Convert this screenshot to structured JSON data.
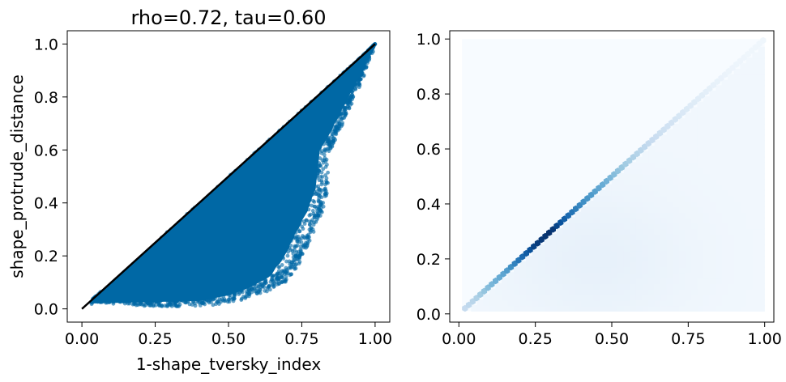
{
  "chart_data": [
    {
      "type": "scatter",
      "title": "rho=0.72, tau=0.60",
      "xlabel": "1-shape_tversky_index",
      "ylabel": "shape_protrude_distance",
      "xlim": [
        -0.05,
        1.05
      ],
      "ylim": [
        -0.05,
        1.05
      ],
      "xticks": [
        "0.00",
        "0.25",
        "0.50",
        "0.75",
        "1.00"
      ],
      "xtick_values": [
        0,
        0.25,
        0.5,
        0.75,
        1.0
      ],
      "yticks": [
        "0.0",
        "0.2",
        "0.4",
        "0.6",
        "0.8",
        "1.0"
      ],
      "ytick_values": [
        0,
        0.2,
        0.4,
        0.6,
        0.8,
        1.0
      ],
      "grid": false,
      "point_color": "#0068a5",
      "line_color": "#000000",
      "reference_line": [
        [
          0,
          0
        ],
        [
          1,
          1
        ]
      ],
      "upper_boundary": [
        [
          0.0,
          0.0
        ],
        [
          1.0,
          1.0
        ]
      ],
      "lower_boundary": [
        [
          0.02,
          0.02
        ],
        [
          0.05,
          0.04
        ],
        [
          0.15,
          0.03
        ],
        [
          0.3,
          0.02
        ],
        [
          0.45,
          0.03
        ],
        [
          0.55,
          0.05
        ],
        [
          0.63,
          0.08
        ],
        [
          0.7,
          0.12
        ],
        [
          0.75,
          0.2
        ],
        [
          0.78,
          0.28
        ],
        [
          0.82,
          0.38
        ],
        [
          0.84,
          0.47
        ],
        [
          0.82,
          0.56
        ],
        [
          0.86,
          0.64
        ],
        [
          0.9,
          0.74
        ],
        [
          0.95,
          0.86
        ],
        [
          1.0,
          1.0
        ]
      ]
    },
    {
      "type": "heatmap",
      "title": "",
      "xlabel": "",
      "ylabel": "",
      "xlim": [
        -0.03,
        1.03
      ],
      "ylim": [
        -0.03,
        1.03
      ],
      "xticks": [
        "0.00",
        "0.25",
        "0.50",
        "0.75",
        "1.00"
      ],
      "xtick_values": [
        0,
        0.25,
        0.5,
        0.75,
        1.0
      ],
      "yticks": [
        "0.0",
        "0.2",
        "0.4",
        "0.6",
        "0.8",
        "1.0"
      ],
      "ytick_values": [
        0,
        0.2,
        0.4,
        0.6,
        0.8,
        1.0
      ],
      "grid": false,
      "colormap": "Blues",
      "background_color": "#f7fbff",
      "extent": [
        0.01,
        1.0,
        0.01,
        1.0
      ],
      "diagonal_density": [
        [
          0.02,
          0.25
        ],
        [
          0.05,
          0.3
        ],
        [
          0.1,
          0.45
        ],
        [
          0.15,
          0.55
        ],
        [
          0.2,
          0.75
        ],
        [
          0.25,
          0.95
        ],
        [
          0.3,
          1.0
        ],
        [
          0.35,
          0.8
        ],
        [
          0.4,
          0.65
        ],
        [
          0.45,
          0.55
        ],
        [
          0.5,
          0.45
        ],
        [
          0.55,
          0.35
        ],
        [
          0.6,
          0.28
        ],
        [
          0.65,
          0.22
        ],
        [
          0.7,
          0.18
        ],
        [
          0.75,
          0.13
        ],
        [
          0.8,
          0.1
        ],
        [
          0.85,
          0.07
        ],
        [
          0.9,
          0.05
        ],
        [
          0.95,
          0.04
        ],
        [
          1.0,
          0.04
        ]
      ]
    }
  ]
}
